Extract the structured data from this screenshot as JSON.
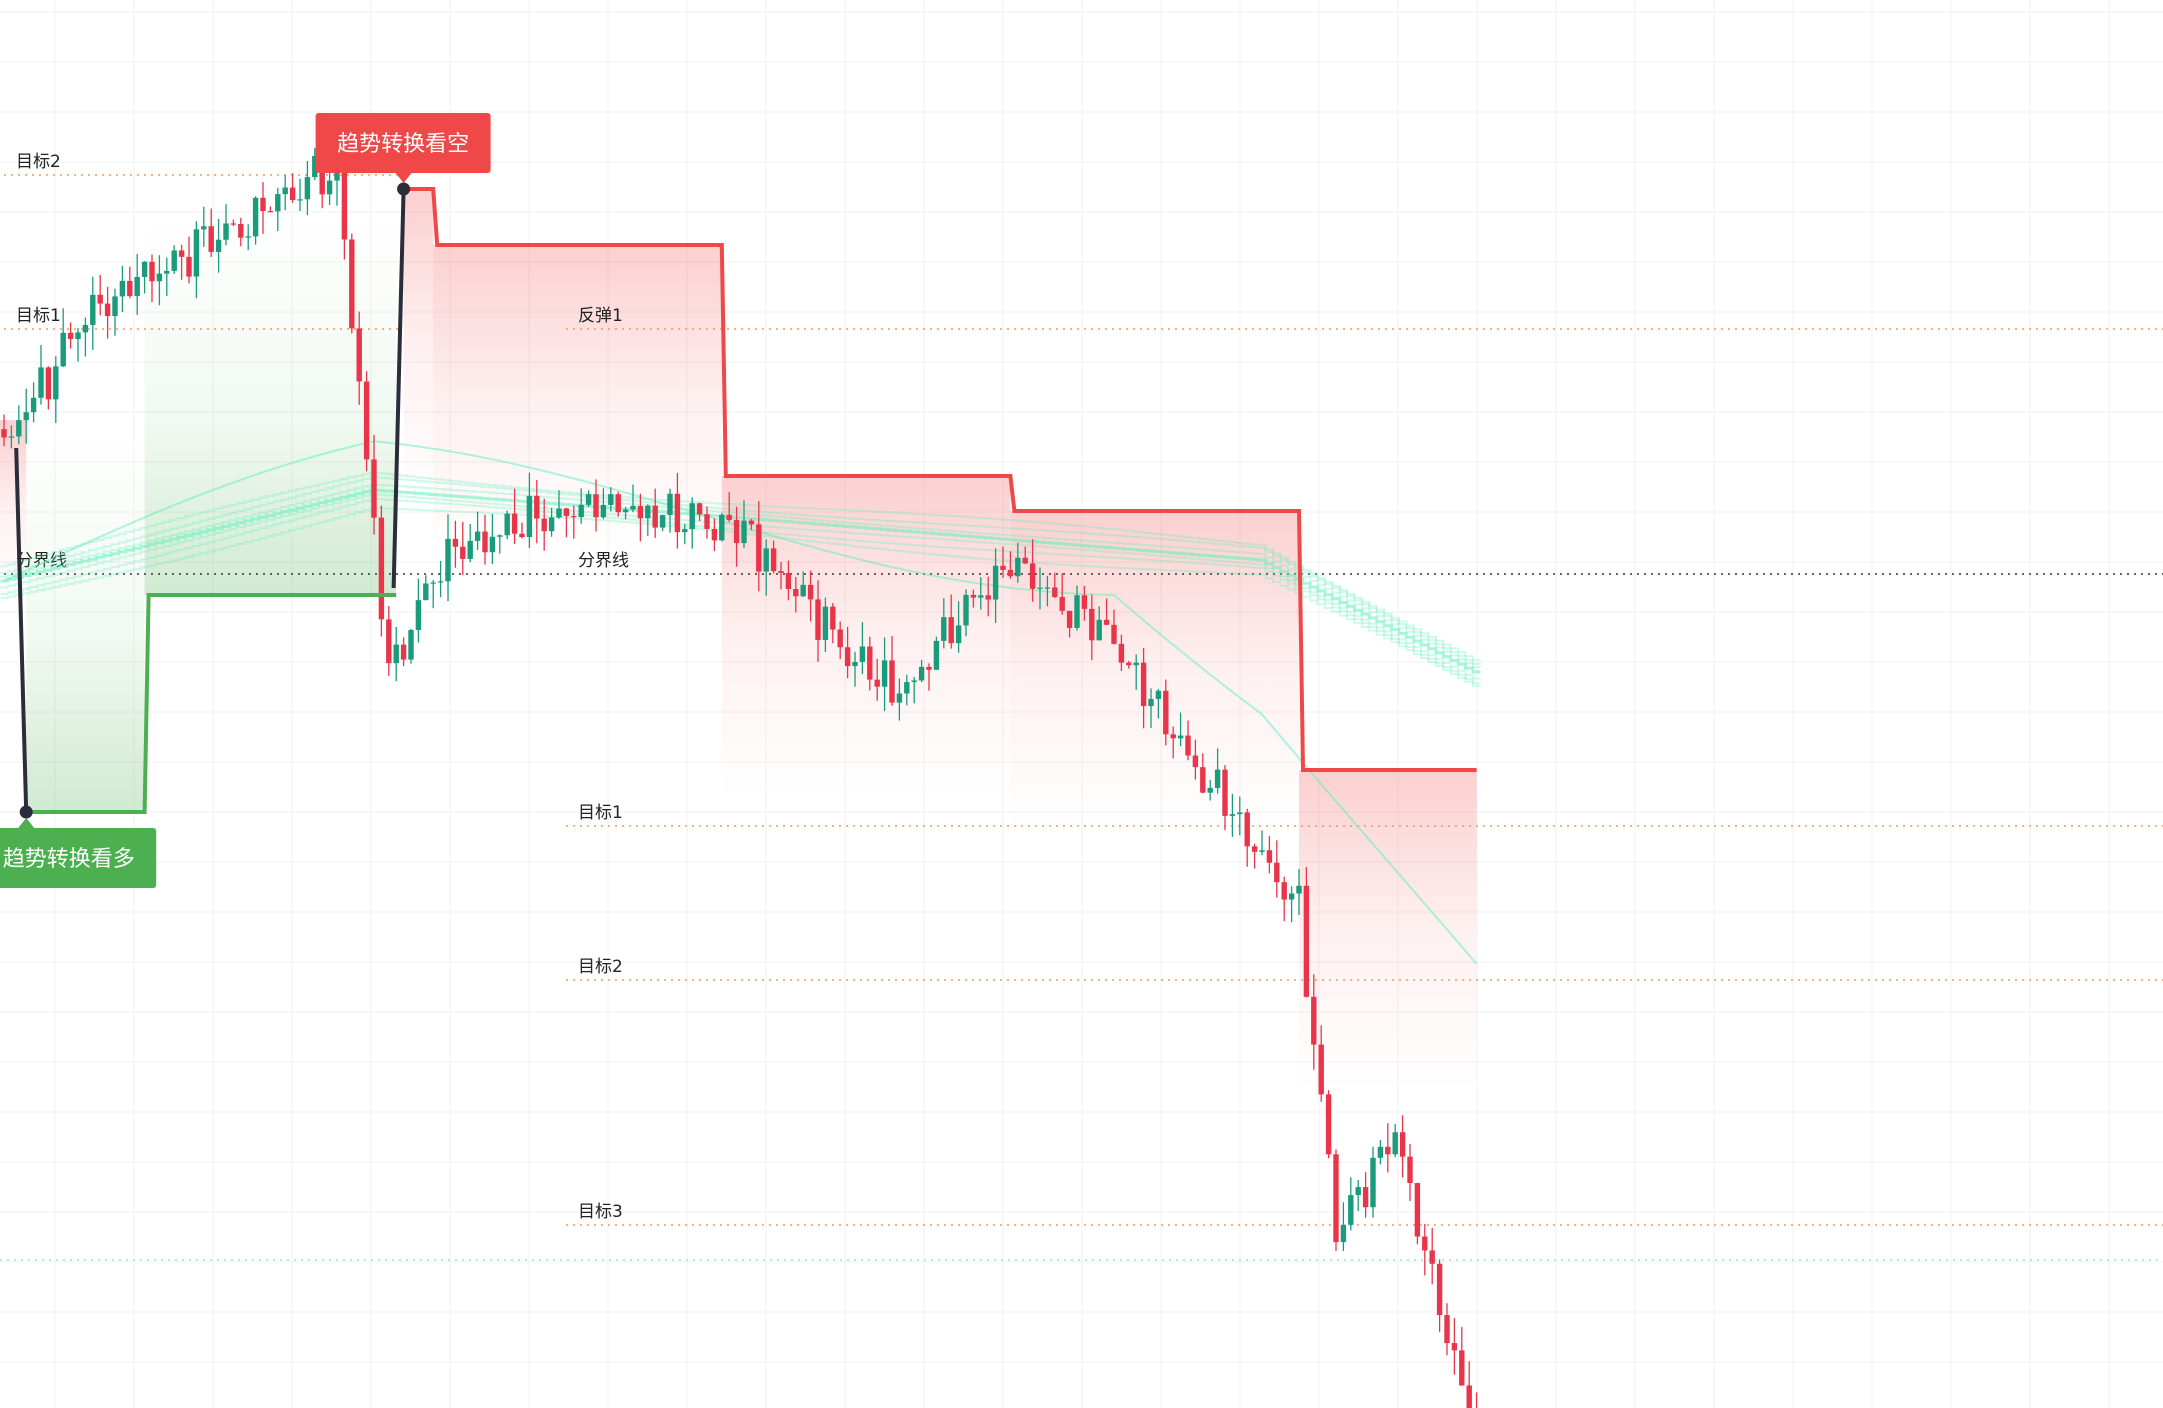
{
  "chart_data": {
    "type": "candlestick",
    "title": "",
    "value_scale": "0-100 normalized units (no price axis printed)",
    "ylim": [
      0,
      100
    ],
    "grid": true,
    "colors": {
      "up": "#1a9b7b",
      "down": "#e8354a",
      "bull_line": "#4caf50",
      "bear_line": "#f04848",
      "switch_line": "#2b2d3a",
      "ribbon": "#5cf0b8",
      "target_line": "#f09a57",
      "divider_line": "#333333"
    },
    "candles_count": 200,
    "key_closes": [
      {
        "bar": 0,
        "close": 68.0
      },
      {
        "bar": 12,
        "close": 78.0
      },
      {
        "bar": 45,
        "close": 88.0
      },
      {
        "bar": 52,
        "close": 52.0
      },
      {
        "bar": 60,
        "close": 61.0
      },
      {
        "bar": 80,
        "close": 64.0
      },
      {
        "bar": 100,
        "close": 62.0
      },
      {
        "bar": 120,
        "close": 50.0
      },
      {
        "bar": 136,
        "close": 60.0
      },
      {
        "bar": 150,
        "close": 54.0
      },
      {
        "bar": 175,
        "close": 35.0
      },
      {
        "bar": 180,
        "close": 12.0
      },
      {
        "bar": 188,
        "close": 19.0
      },
      {
        "bar": 199,
        "close": -3.0
      }
    ],
    "ribbon_level": [
      {
        "bar": 0,
        "value": 58.5
      },
      {
        "bar": 50,
        "value": 65.0
      },
      {
        "bar": 100,
        "value": 63.0
      },
      {
        "bar": 170,
        "value": 60.0
      },
      {
        "bar": 199,
        "value": 52.0
      }
    ],
    "bull_phase": {
      "start_bar": 3,
      "end_bar": 53,
      "stop_steps": [
        {
          "from_bar": 3,
          "to_bar": 19,
          "value": 42.0
        },
        {
          "from_bar": 19,
          "to_bar": 53,
          "value": 57.5
        }
      ],
      "switch_from": 68.0,
      "switch_to": 42.0,
      "badge_label": "趋势转换看多",
      "levels": [
        {
          "label": "目标2",
          "value": 87.5
        },
        {
          "label": "目标1",
          "value": 76.5
        },
        {
          "label": "分界线",
          "value": 59.0
        }
      ]
    },
    "bear_phase": {
      "start_bar": 54,
      "end_bar": 199,
      "stop_steps": [
        {
          "from_bar": 54,
          "to_bar": 58,
          "value": 86.5
        },
        {
          "from_bar": 58,
          "to_bar": 97,
          "value": 82.5
        },
        {
          "from_bar": 97,
          "to_bar": 136,
          "value": 66.0
        },
        {
          "from_bar": 136,
          "to_bar": 175,
          "value": 63.5
        },
        {
          "from_bar": 175,
          "to_bar": 199,
          "value": 45.0
        }
      ],
      "switch_from": 58.0,
      "switch_to": 86.5,
      "badge_label": "趋势转换看空",
      "levels": [
        {
          "label": "反弹1",
          "value": 76.5
        },
        {
          "label": "分界线",
          "value": 59.0
        },
        {
          "label": "目标1",
          "value": 41.0
        },
        {
          "label": "目标2",
          "value": 30.0
        },
        {
          "label": "目标3",
          "value": 12.5
        }
      ]
    },
    "extra_level": {
      "value": 10.0
    }
  }
}
